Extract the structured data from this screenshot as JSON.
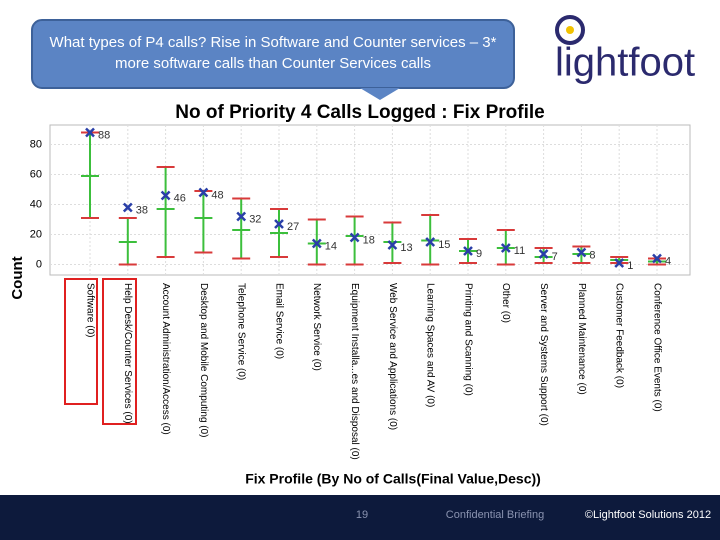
{
  "callout": "What types of P4 calls? Rise in Software and Counter services – 3* more software calls than Counter Services calls",
  "logo": "lightfoot",
  "chart_data": {
    "type": "scatter",
    "title": "No of Priority 4 Calls Logged : Fix Profile",
    "x_label": "Fix Profile (By No of Calls(Final Value,Desc))",
    "y_label": "Count",
    "categories": [
      "Software (0)",
      "Help Desk/Counter Services (0)",
      "Account Administration/Access (0)",
      "Desktop and Mobile Computing (0)",
      "Telephone Service (0)",
      "Email Service (0)",
      "Network Service (0)",
      "Equipment Installa...es and Disposal (0)",
      "Web Service and Applications (0)",
      "Learning Spaces and AV (0)",
      "Printing and Scanning (0)",
      "Other (0)",
      "Server and Systems Support (0)",
      "Planned Maintenance (0)",
      "Customer Feedback (0)",
      "Conference Office Events (0)"
    ],
    "values": [
      88,
      38,
      46,
      48,
      32,
      27,
      14,
      18,
      13,
      15,
      9,
      11,
      7,
      8,
      1,
      4
    ],
    "color": "#2a3fa8",
    "error_bars": {
      "upper": [
        88,
        31,
        65,
        49,
        44,
        37,
        30,
        32,
        28,
        33,
        17,
        23,
        11,
        12,
        5,
        4
      ],
      "center": [
        59,
        15,
        37,
        31,
        23,
        21,
        14,
        19,
        15,
        16,
        9,
        11,
        5,
        7,
        3,
        2
      ],
      "lower": [
        31,
        0,
        5,
        8,
        4,
        5,
        0,
        0,
        1,
        0,
        1,
        0,
        1,
        1,
        1,
        0
      ],
      "bar_color": "#3cbf3c",
      "cap_color": "#d83a3a"
    },
    "ylim": [
      -7,
      93
    ],
    "yticks": [
      0,
      20,
      40,
      60,
      80
    ],
    "grid": true
  },
  "footer": {
    "page": "19",
    "confidential": "Confidential Briefing",
    "copyright": "©Lightfoot Solutions 2012"
  }
}
